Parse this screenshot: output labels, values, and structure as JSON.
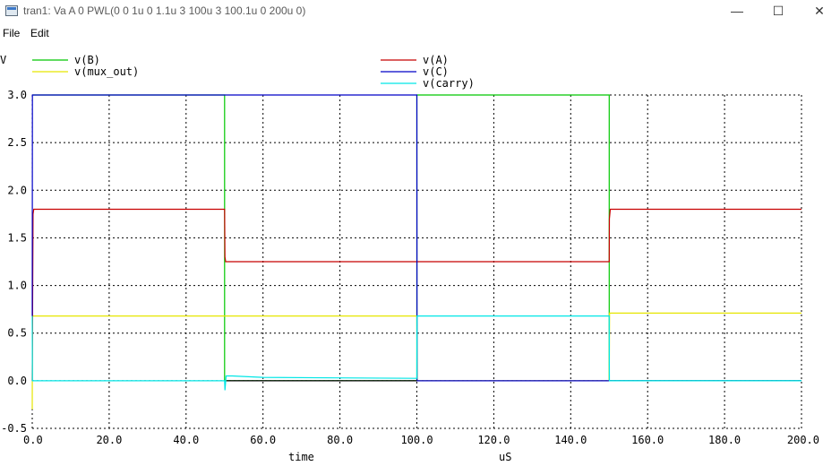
{
  "window": {
    "title": "tran1: Va A 0 PWL(0 0 1u 0 1.1u 3 100u 3 100.1u 0 200u 0)",
    "minimize_glyph": "—",
    "maximize_glyph": "☐",
    "close_glyph": "✕"
  },
  "menu": {
    "file": "File",
    "edit": "Edit"
  },
  "chart_data": {
    "type": "line",
    "ylabel": "V",
    "xlabel": "time",
    "xunit": "uS",
    "xlim": [
      0,
      200
    ],
    "ylim": [
      -0.5,
      3.0
    ],
    "x_ticks": [
      "0.0",
      "20.0",
      "40.0",
      "60.0",
      "80.0",
      "100.0",
      "120.0",
      "140.0",
      "160.0",
      "180.0",
      "200.0"
    ],
    "y_ticks": [
      "-0.5",
      "0.0",
      "0.5",
      "1.0",
      "1.5",
      "2.0",
      "2.5",
      "3.0"
    ],
    "grid": true,
    "background": "#ffffff",
    "series": [
      {
        "name": "v(B)",
        "color": "#00c800",
        "x": [
          0,
          50,
          50,
          100,
          100,
          150,
          150,
          200
        ],
        "y": [
          3.0,
          3.0,
          0.0,
          0.0,
          3.0,
          3.0,
          0.0,
          0.0
        ]
      },
      {
        "name": "v(mux_out)",
        "color": "#e6e600",
        "x": [
          0,
          0.05,
          0.3,
          50,
          50.1,
          100,
          100.1,
          150,
          150.1,
          200
        ],
        "y": [
          -0.3,
          0.68,
          0.68,
          0.68,
          0.68,
          0.68,
          0.0,
          0.0,
          0.71,
          0.71
        ]
      },
      {
        "name": "v(A)",
        "color": "#c80000",
        "x": [
          0,
          0.2,
          0.4,
          50,
          50.1,
          50.3,
          50.6,
          150,
          150.05,
          150.3,
          200
        ],
        "y": [
          0.0,
          1.75,
          1.8,
          1.8,
          1.3,
          1.25,
          1.25,
          1.25,
          1.7,
          1.8,
          1.8
        ]
      },
      {
        "name": "v(C)",
        "color": "#0000c8",
        "x": [
          0,
          0.05,
          100,
          100.05,
          200
        ],
        "y": [
          0.68,
          3.0,
          3.0,
          0.0,
          0.0
        ]
      },
      {
        "name": "v(carry)",
        "color": "#00e6e6",
        "x": [
          0,
          0.05,
          0.4,
          50,
          50.1,
          50.4,
          52,
          55,
          60,
          80,
          100,
          100.05,
          100.3,
          150,
          150.05,
          200
        ],
        "y": [
          0.68,
          0.0,
          0.0,
          0.0,
          -0.1,
          0.05,
          0.05,
          0.045,
          0.035,
          0.03,
          0.025,
          0.68,
          0.68,
          0.68,
          0.0,
          0.0
        ]
      },
      {
        "name": "",
        "color": "#000000",
        "x": [
          50.5,
          100
        ],
        "y": [
          0.0,
          0.0
        ]
      }
    ]
  }
}
